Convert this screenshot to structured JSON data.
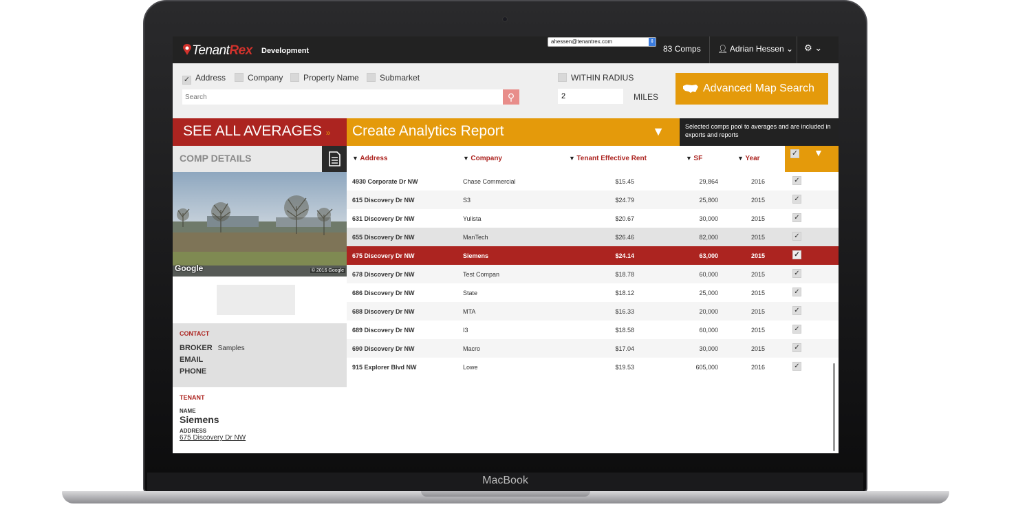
{
  "device": {
    "brand": "MacBook"
  },
  "topbar": {
    "logo_tenant": "Tenant",
    "logo_rex": "Rex",
    "environment": "Development",
    "email": "ahessen@tenantrex.com",
    "comps_count": "83 Comps",
    "user_name": "Adrian Hessen",
    "user_chevron": "⌄",
    "settings_icon": "gear-icon"
  },
  "search": {
    "filters": [
      {
        "label": "Address",
        "checked": true
      },
      {
        "label": "Company",
        "checked": false
      },
      {
        "label": "Property Name",
        "checked": false
      },
      {
        "label": "Submarket",
        "checked": false
      }
    ],
    "placeholder": "Search",
    "within_radius_label": "WITHIN RADIUS",
    "radius_value": "2",
    "miles_label": "MILES",
    "advanced_button": "Advanced Map Search"
  },
  "bars": {
    "averages": "SEE ALL AVERAGES",
    "analytics": "Create Analytics Report",
    "note": "Selected comps pool to averages and are included in exports and reports"
  },
  "comp_details": {
    "title": "COMP DETAILS",
    "photo_credit": "Google",
    "photo_copyright": "© 2016 Google",
    "contact": {
      "section": "CONTACT",
      "broker_label": "BROKER",
      "broker_value": "Samples",
      "email_label": "EMAIL",
      "phone_label": "PHONE"
    },
    "tenant": {
      "section": "TENANT",
      "name_label": "NAME",
      "name": "Siemens",
      "address_label": "ADDRESS",
      "address": "675 Discovery Dr NW"
    }
  },
  "table": {
    "columns": [
      "Address",
      "Company",
      "Tenant Effective Rent",
      "SF",
      "Year"
    ],
    "rows": [
      {
        "address": "4930 Corporate Dr NW",
        "company": "Chase Commercial",
        "rent": "$15.45",
        "sf": "29,864",
        "year": "2016"
      },
      {
        "address": "615 Discovery Dr NW",
        "company": "S3",
        "rent": "$24.79",
        "sf": "25,800",
        "year": "2015"
      },
      {
        "address": "631 Discovery Dr NW",
        "company": "Yulista",
        "rent": "$20.67",
        "sf": "30,000",
        "year": "2015"
      },
      {
        "address": "655 Discovery Dr NW",
        "company": "ManTech",
        "rent": "$26.46",
        "sf": "82,000",
        "year": "2015"
      },
      {
        "address": "675 Discovery Dr NW",
        "company": "Siemens",
        "rent": "$24.14",
        "sf": "63,000",
        "year": "2015"
      },
      {
        "address": "678 Discovery Dr NW",
        "company": "Test Compan",
        "rent": "$18.78",
        "sf": "60,000",
        "year": "2015"
      },
      {
        "address": "686 Discovery Dr NW",
        "company": "State",
        "rent": "$18.12",
        "sf": "25,000",
        "year": "2015"
      },
      {
        "address": "688 Discovery Dr NW",
        "company": "MTA",
        "rent": "$16.33",
        "sf": "20,000",
        "year": "2015"
      },
      {
        "address": "689 Discovery Dr NW",
        "company": "I3",
        "rent": "$18.58",
        "sf": "60,000",
        "year": "2015"
      },
      {
        "address": "690 Discovery Dr NW",
        "company": "Macro",
        "rent": "$17.04",
        "sf": "30,000",
        "year": "2015"
      },
      {
        "address": "915 Explorer Blvd NW",
        "company": "Lowe",
        "rent": "$19.53",
        "sf": "605,000",
        "year": "2016"
      }
    ],
    "selected_index": 4,
    "hover_index": 3
  }
}
